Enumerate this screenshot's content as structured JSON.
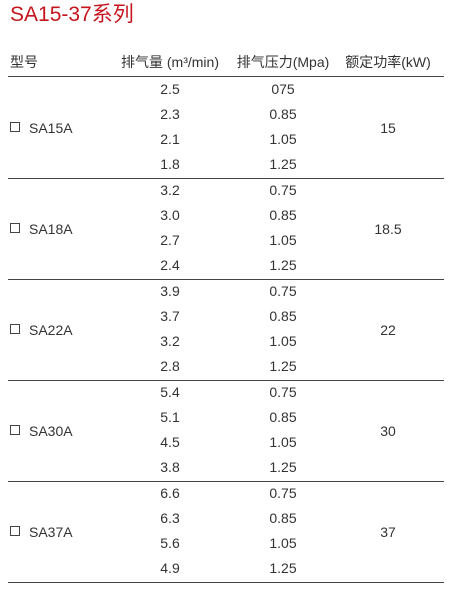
{
  "title": "SA15-37系列",
  "table": {
    "headers": [
      "型号",
      "排气量 (m³/min)",
      "排气压力(Mpa)",
      "额定功率(kW)"
    ],
    "groups": [
      {
        "model": "SA15A",
        "power": "15",
        "rows": [
          [
            "2.5",
            "075"
          ],
          [
            "2.3",
            "0.85"
          ],
          [
            "2.1",
            "1.05"
          ],
          [
            "1.8",
            "1.25"
          ]
        ]
      },
      {
        "model": "SA18A",
        "power": "18.5",
        "rows": [
          [
            "3.2",
            "0.75"
          ],
          [
            "3.0",
            "0.85"
          ],
          [
            "2.7",
            "1.05"
          ],
          [
            "2.4",
            "1.25"
          ]
        ]
      },
      {
        "model": "SA22A",
        "power": "22",
        "rows": [
          [
            "3.9",
            "0.75"
          ],
          [
            "3.7",
            "0.85"
          ],
          [
            "3.2",
            "1.05"
          ],
          [
            "2.8",
            "1.25"
          ]
        ]
      },
      {
        "model": "SA30A",
        "power": "30",
        "rows": [
          [
            "5.4",
            "0.75"
          ],
          [
            "5.1",
            "0.85"
          ],
          [
            "4.5",
            "1.05"
          ],
          [
            "3.8",
            "1.25"
          ]
        ]
      },
      {
        "model": "SA37A",
        "power": "37",
        "rows": [
          [
            "6.6",
            "0.75"
          ],
          [
            "6.3",
            "0.85"
          ],
          [
            "5.6",
            "1.05"
          ],
          [
            "4.9",
            "1.25"
          ]
        ]
      }
    ]
  }
}
